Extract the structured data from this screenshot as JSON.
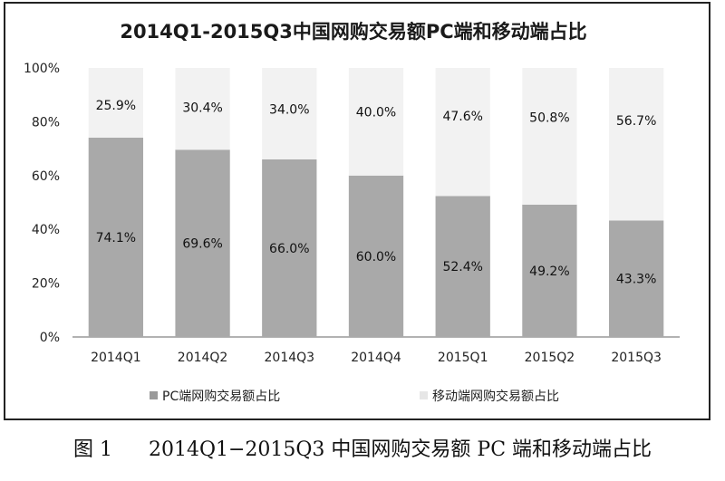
{
  "figure": {
    "caption_number": "图 1",
    "caption_text": "2014Q1−2015Q3 中国网购交易额 PC 端和移动端占比"
  },
  "chart_data": {
    "type": "bar",
    "stacked": true,
    "title": "2014Q1-2015Q3中国网购交易额PC端和移动端占比",
    "categories": [
      "2014Q1",
      "2014Q2",
      "2014Q3",
      "2014Q4",
      "2015Q1",
      "2015Q2",
      "2015Q3"
    ],
    "series": [
      {
        "name": "PC端网购交易额占比",
        "values": [
          74.1,
          69.6,
          66.0,
          60.0,
          52.4,
          49.2,
          43.3
        ],
        "labels": [
          "74.1%",
          "69.6%",
          "66.0%",
          "60.0%",
          "52.4%",
          "49.2%",
          "43.3%"
        ],
        "color": "#a9a9a9"
      },
      {
        "name": "移动端网购交易额占比",
        "values": [
          25.9,
          30.4,
          34.0,
          40.0,
          47.6,
          50.8,
          56.7
        ],
        "labels": [
          "25.9%",
          "30.4%",
          "34.0%",
          "40.0%",
          "47.6%",
          "50.8%",
          "56.7%"
        ],
        "color": "#f2f2f2"
      }
    ],
    "ylim": [
      0,
      100
    ],
    "yticks": [
      "0%",
      "20%",
      "40%",
      "60%",
      "80%",
      "100%"
    ],
    "grid": false,
    "legend": "bottom"
  }
}
